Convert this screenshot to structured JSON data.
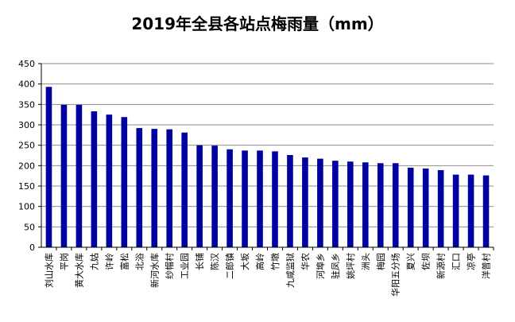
{
  "chart_data": {
    "type": "bar",
    "title": "2019年全县各站点梅雨量（mm）",
    "xlabel": "",
    "ylabel": "",
    "ylim": [
      0,
      450
    ],
    "yticks": [
      0,
      50,
      100,
      150,
      200,
      250,
      300,
      350,
      400,
      450
    ],
    "grid": true,
    "legend": "none",
    "bar_color": "#0000A0",
    "categories": [
      "刘山水库",
      "平岗",
      "黄大水库",
      "九姑",
      "许岭",
      "富松",
      "北浴",
      "新河水库",
      "纱帽村",
      "工业园",
      "长铺",
      "陈汉",
      "二郎镇",
      "大坂",
      "高岭",
      "竹墩",
      "九咸监狱",
      "华农",
      "河埠乡",
      "驻凤乡",
      "姚坪村",
      "洲头",
      "梅园",
      "华阳五分场",
      "夏兴",
      "佐坝",
      "新源村",
      "汇口",
      "凉亭",
      "洋普村"
    ],
    "values": [
      393,
      349,
      349,
      333,
      325,
      319,
      292,
      290,
      289,
      281,
      250,
      249,
      240,
      237,
      237,
      235,
      226,
      220,
      217,
      212,
      210,
      208,
      206,
      206,
      195,
      193,
      189,
      178,
      178,
      176
    ]
  }
}
